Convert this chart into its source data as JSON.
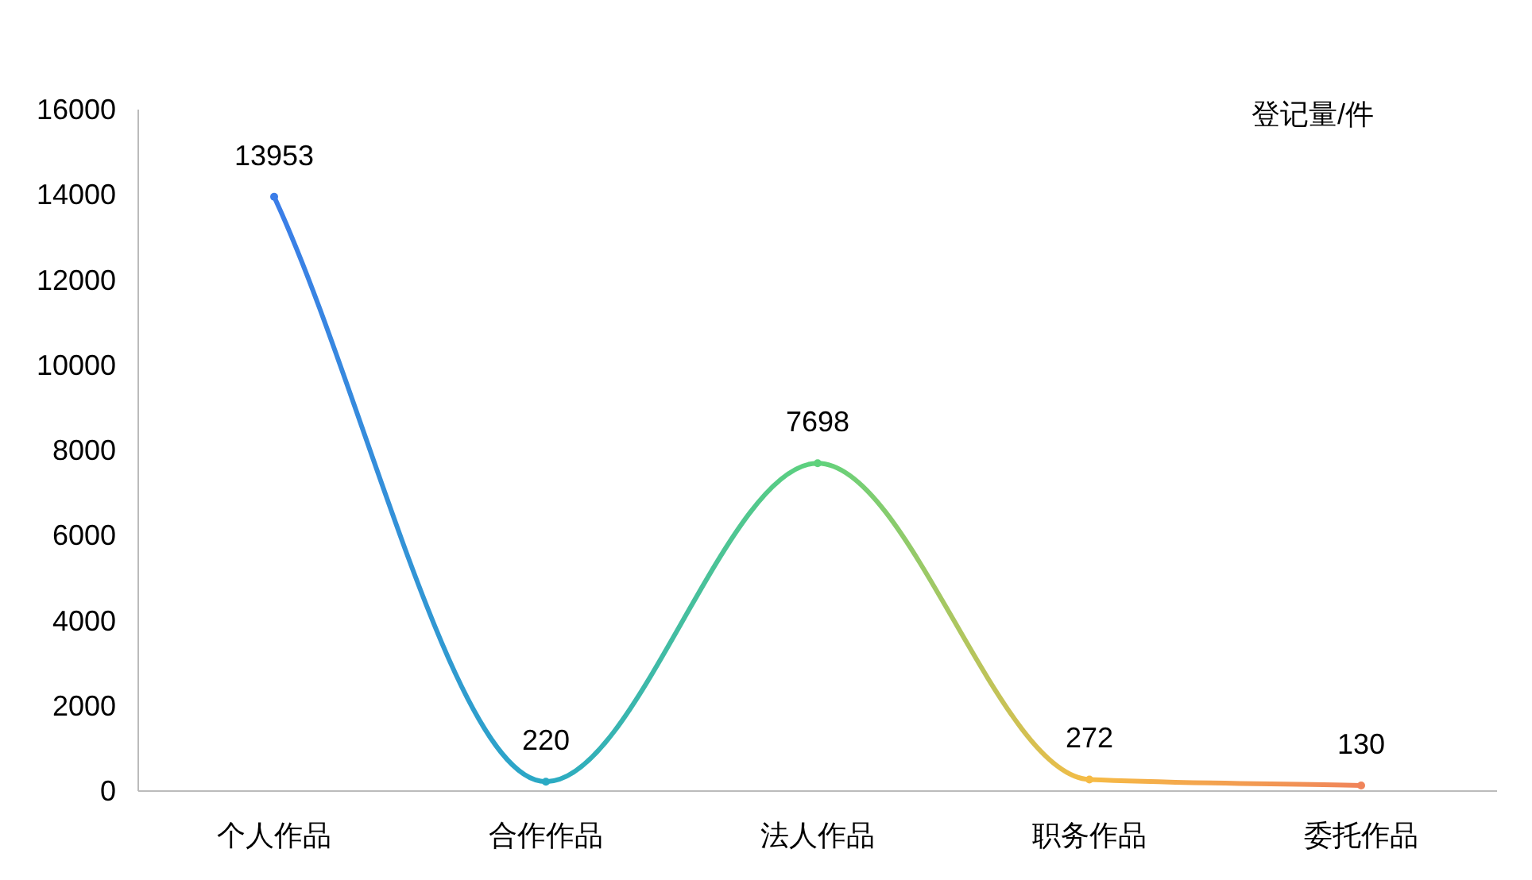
{
  "chart_data": {
    "type": "line",
    "ylabel": "登记量/件",
    "categories": [
      "个人作品",
      "合作作品",
      "法人作品",
      "职务作品",
      "委托作品"
    ],
    "values": [
      13953,
      220,
      7698,
      272,
      130
    ],
    "colors": [
      "#3b7de8",
      "#2aaac4",
      "#5fd27c",
      "#f6bb45",
      "#f0845a"
    ],
    "ylim": [
      0,
      16000
    ],
    "yticks": [
      0,
      2000,
      4000,
      6000,
      8000,
      10000,
      12000,
      14000,
      16000
    ],
    "data_labels": true,
    "marker": "circle"
  }
}
